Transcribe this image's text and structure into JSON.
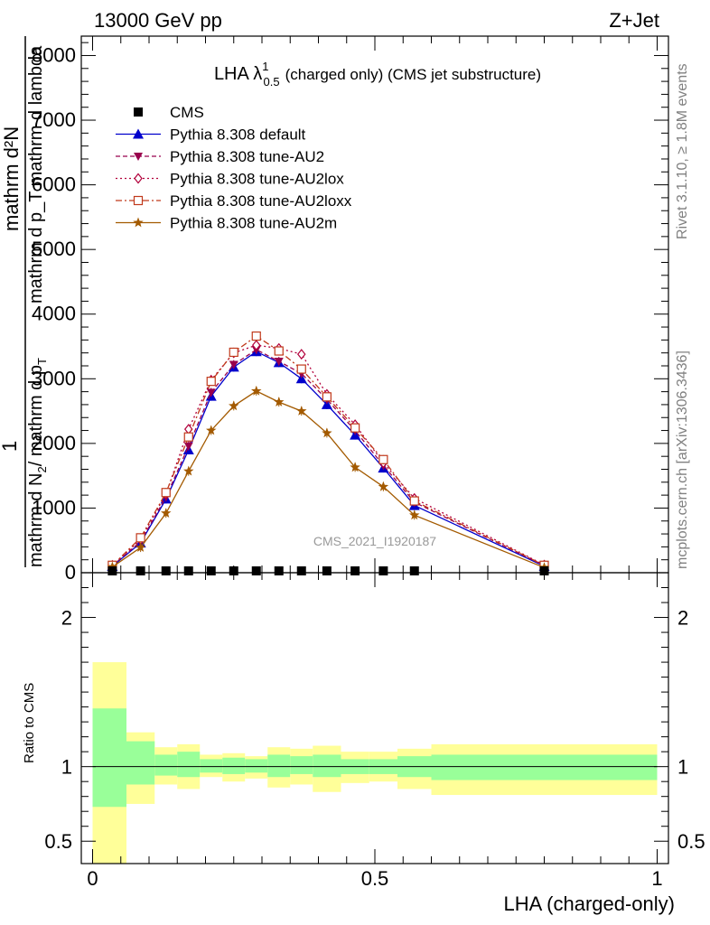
{
  "header": {
    "left_text": "13000 GeV pp",
    "right_text": "Z+Jet"
  },
  "side": {
    "rivet": "Rivet 3.1.10, ≥ 1.8M events",
    "mcplots": "mcplots.cern.ch [arXiv:1306.3436]"
  },
  "chart_data": {
    "type": "line",
    "title_main": "LHA λ",
    "title_sup": "1",
    "title_sub": "0.5",
    "title_rest": "(charged only) (CMS jet substructure)",
    "watermark": "CMS_2021_I1920187",
    "xlabel": "LHA (charged-only)",
    "ylabel_line1": "mathrm d²N",
    "ylabel_line2": "mathrm d p_T mathrm d lambda",
    "ylabel_line3_text": "mathrm d N",
    "ylabel_line3_sub": "2",
    "ylabel_line3_rest": "/ mathrm d p",
    "ylabel_line3_sub2": "T",
    "ylabel_prefix": "1",
    "ratio_ylabel": "Ratio to CMS",
    "xlim": [
      -0.02,
      1.02
    ],
    "ylim": [
      0,
      8300
    ],
    "yticks": [
      0,
      1000,
      2000,
      3000,
      4000,
      5000,
      6000,
      7000,
      8000
    ],
    "ytick_labels": [
      "0",
      "1000",
      "2000",
      "3000",
      "4000",
      "5000",
      "6000",
      "7000",
      "8000"
    ],
    "xticks": [
      0,
      0.5,
      1
    ],
    "xtick_labels": [
      "0",
      "0.5",
      "1"
    ],
    "ratio_ylim": [
      0.35,
      2.3
    ],
    "ratio_yticks": [
      0.5,
      1,
      2
    ],
    "ratio_ytick_labels": [
      "0.5",
      "1",
      "2"
    ],
    "legend_position": "top-left",
    "legend": [
      {
        "label": "CMS",
        "color": "#000000",
        "marker": "square-filled",
        "line": "none"
      },
      {
        "label": "Pythia 8.308 default",
        "color": "#0000cc",
        "marker": "triangle-up",
        "line": "solid"
      },
      {
        "label": "Pythia 8.308 tune-AU2",
        "color": "#99004d",
        "marker": "triangle-down",
        "line": "dashed"
      },
      {
        "label": "Pythia 8.308 tune-AU2lox",
        "color": "#b2003b",
        "marker": "diamond-open",
        "line": "dotted"
      },
      {
        "label": "Pythia 8.308 tune-AU2loxx",
        "color": "#c0391b",
        "marker": "square-open",
        "line": "dashdot"
      },
      {
        "label": "Pythia 8.308 tune-AU2m",
        "color": "#a35a00",
        "marker": "star",
        "line": "solid"
      }
    ],
    "data_points": {
      "x": [
        0.035,
        0.085,
        0.13,
        0.17,
        0.21,
        0.25,
        0.29,
        0.33,
        0.37,
        0.415,
        0.465,
        0.515,
        0.57,
        0.8
      ],
      "y": [
        0,
        0,
        0,
        0,
        0,
        0,
        0,
        0,
        0,
        0,
        0,
        0,
        0,
        0
      ]
    },
    "x": [
      0.035,
      0.085,
      0.13,
      0.17,
      0.21,
      0.25,
      0.29,
      0.33,
      0.37,
      0.415,
      0.465,
      0.515,
      0.57,
      0.8
    ],
    "series": [
      {
        "name": "Pythia 8.308 default",
        "values": [
          100,
          460,
          1140,
          1900,
          2730,
          3180,
          3420,
          3250,
          3000,
          2600,
          2130,
          1620,
          1040,
          100
        ]
      },
      {
        "name": "Pythia 8.308 tune-AU2",
        "values": [
          110,
          480,
          1170,
          1960,
          2790,
          3220,
          3450,
          3270,
          3080,
          2680,
          2200,
          1660,
          1090,
          110
        ]
      },
      {
        "name": "Pythia 8.308 tune-AU2lox",
        "values": [
          115,
          510,
          1220,
          2220,
          2980,
          3400,
          3520,
          3470,
          3380,
          2760,
          2290,
          1700,
          1150,
          120
        ]
      },
      {
        "name": "Pythia 8.308 tune-AU2loxx",
        "values": [
          115,
          540,
          1240,
          2100,
          2960,
          3410,
          3660,
          3430,
          3150,
          2720,
          2240,
          1750,
          1110,
          115
        ]
      },
      {
        "name": "Pythia 8.308 tune-AU2m",
        "values": [
          90,
          390,
          920,
          1570,
          2200,
          2580,
          2810,
          2640,
          2500,
          2160,
          1630,
          1330,
          890,
          80
        ]
      }
    ],
    "ratio_bands": [
      {
        "x0": 0.0,
        "x1": 0.06,
        "inner": [
          0.73,
          1.39
        ],
        "outer": [
          0.35,
          1.7
        ]
      },
      {
        "x0": 0.06,
        "x1": 0.11,
        "inner": [
          0.88,
          1.17
        ],
        "outer": [
          0.75,
          1.23
        ]
      },
      {
        "x0": 0.11,
        "x1": 0.15,
        "inner": [
          0.94,
          1.08
        ],
        "outer": [
          0.88,
          1.13
        ]
      },
      {
        "x0": 0.15,
        "x1": 0.19,
        "inner": [
          0.93,
          1.1
        ],
        "outer": [
          0.85,
          1.15
        ]
      },
      {
        "x0": 0.19,
        "x1": 0.23,
        "inner": [
          0.96,
          1.05
        ],
        "outer": [
          0.93,
          1.08
        ]
      },
      {
        "x0": 0.23,
        "x1": 0.27,
        "inner": [
          0.95,
          1.06
        ],
        "outer": [
          0.9,
          1.09
        ]
      },
      {
        "x0": 0.27,
        "x1": 0.31,
        "inner": [
          0.96,
          1.05
        ],
        "outer": [
          0.92,
          1.07
        ]
      },
      {
        "x0": 0.31,
        "x1": 0.35,
        "inner": [
          0.93,
          1.08
        ],
        "outer": [
          0.86,
          1.13
        ]
      },
      {
        "x0": 0.35,
        "x1": 0.39,
        "inner": [
          0.95,
          1.07
        ],
        "outer": [
          0.88,
          1.12
        ]
      },
      {
        "x0": 0.39,
        "x1": 0.44,
        "inner": [
          0.93,
          1.08
        ],
        "outer": [
          0.83,
          1.14
        ]
      },
      {
        "x0": 0.44,
        "x1": 0.49,
        "inner": [
          0.95,
          1.05
        ],
        "outer": [
          0.89,
          1.1
        ]
      },
      {
        "x0": 0.49,
        "x1": 0.54,
        "inner": [
          0.95,
          1.05
        ],
        "outer": [
          0.9,
          1.1
        ]
      },
      {
        "x0": 0.54,
        "x1": 0.6,
        "inner": [
          0.93,
          1.07
        ],
        "outer": [
          0.85,
          1.12
        ]
      },
      {
        "x0": 0.6,
        "x1": 1.0,
        "inner": [
          0.91,
          1.08
        ],
        "outer": [
          0.81,
          1.15
        ]
      }
    ]
  }
}
